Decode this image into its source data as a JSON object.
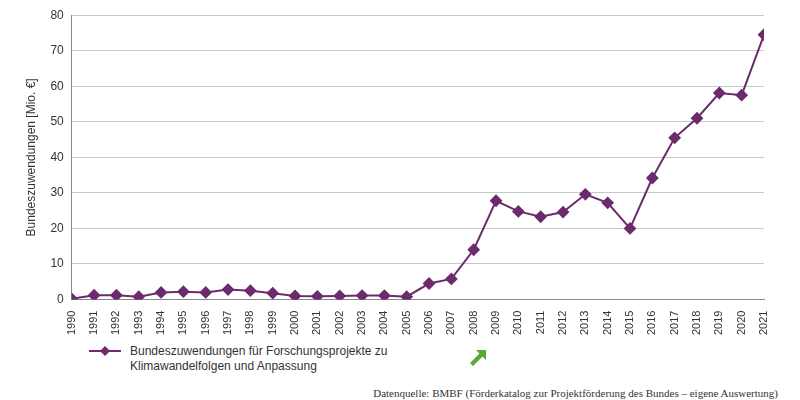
{
  "chart_data": {
    "type": "line",
    "categories": [
      "1990",
      "1991",
      "1992",
      "1993",
      "1994",
      "1995",
      "1996",
      "1997",
      "1998",
      "1999",
      "2000",
      "2001",
      "2002",
      "2003",
      "2004",
      "2005",
      "2006",
      "2007",
      "2008",
      "2009",
      "2010",
      "2011",
      "2012",
      "2013",
      "2014",
      "2015",
      "2016",
      "2017",
      "2018",
      "2019",
      "2020",
      "2021"
    ],
    "series": [
      {
        "name": "Bundeszuwendungen für Forschungsprojekte zu Klimawandelfolgen und Anpassung",
        "color": "#6c2b6c",
        "marker": "diamond",
        "values": [
          0.2,
          1.2,
          1.2,
          0.8,
          2.0,
          2.2,
          2.0,
          2.8,
          2.5,
          1.8,
          1.0,
          0.9,
          1.0,
          1.1,
          1.1,
          0.8,
          4.5,
          5.8,
          14.0,
          27.8,
          24.8,
          23.3,
          24.6,
          29.6,
          27.2,
          20.0,
          34.2,
          45.5,
          51.0,
          58.1,
          57.5,
          74.5
        ]
      }
    ],
    "y_label": "Bundeszuwendungen [Mio. €]",
    "ylim": [
      0,
      80
    ],
    "yticks": [
      0,
      10,
      20,
      30,
      40,
      50,
      60,
      70,
      80
    ],
    "grid": true,
    "legend": "bottom-left",
    "source": "Datenquelle: BMBF (Förderkatalog zur Projektförderung des Bundes – eigene Auswertung)"
  }
}
